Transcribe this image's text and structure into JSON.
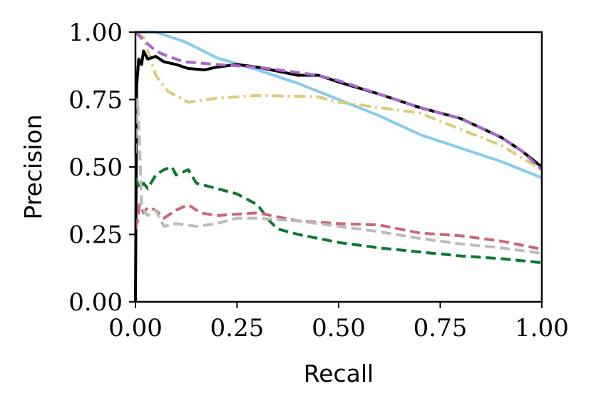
{
  "chart_data": {
    "type": "line",
    "title": "",
    "xlabel": "Recall",
    "ylabel": "Precision",
    "xlim": [
      0,
      1
    ],
    "ylim": [
      0,
      1
    ],
    "xticks": [
      "0.00",
      "0.25",
      "0.50",
      "0.75",
      "1.00"
    ],
    "yticks": [
      "0.00",
      "0.25",
      "0.50",
      "0.75",
      "1.00"
    ],
    "grid": false,
    "series": [
      {
        "color": "#88ccee",
        "dash": "solid",
        "points": [
          [
            0.0,
            1.0
          ],
          [
            0.05,
            1.0
          ],
          [
            0.12,
            0.965
          ],
          [
            0.2,
            0.905
          ],
          [
            0.3,
            0.86
          ],
          [
            0.4,
            0.81
          ],
          [
            0.5,
            0.75
          ],
          [
            0.6,
            0.69
          ],
          [
            0.7,
            0.62
          ],
          [
            0.8,
            0.57
          ],
          [
            0.9,
            0.52
          ],
          [
            1.0,
            0.46
          ]
        ]
      },
      {
        "color": "#ddcc77",
        "dash": "dashdot",
        "points": [
          [
            0.0,
            1.0
          ],
          [
            0.02,
            0.98
          ],
          [
            0.05,
            0.84
          ],
          [
            0.08,
            0.78
          ],
          [
            0.13,
            0.74
          ],
          [
            0.2,
            0.755
          ],
          [
            0.3,
            0.765
          ],
          [
            0.45,
            0.76
          ],
          [
            0.5,
            0.74
          ],
          [
            0.6,
            0.72
          ],
          [
            0.7,
            0.7
          ],
          [
            0.8,
            0.64
          ],
          [
            0.9,
            0.58
          ],
          [
            1.0,
            0.49
          ]
        ]
      },
      {
        "color": "#000000",
        "dash": "solid",
        "points": [
          [
            0.0,
            0.0
          ],
          [
            0.003,
            0.8
          ],
          [
            0.008,
            0.9
          ],
          [
            0.015,
            0.88
          ],
          [
            0.02,
            0.93
          ],
          [
            0.03,
            0.9
          ],
          [
            0.05,
            0.91
          ],
          [
            0.07,
            0.89
          ],
          [
            0.1,
            0.88
          ],
          [
            0.13,
            0.865
          ],
          [
            0.17,
            0.86
          ],
          [
            0.2,
            0.87
          ],
          [
            0.25,
            0.88
          ],
          [
            0.3,
            0.87
          ],
          [
            0.35,
            0.855
          ],
          [
            0.4,
            0.84
          ],
          [
            0.45,
            0.84
          ],
          [
            0.5,
            0.815
          ],
          [
            0.6,
            0.77
          ],
          [
            0.7,
            0.72
          ],
          [
            0.8,
            0.68
          ],
          [
            0.9,
            0.61
          ],
          [
            0.95,
            0.56
          ],
          [
            1.0,
            0.5
          ]
        ]
      },
      {
        "color": "#aa66cc",
        "dash": "dashed",
        "points": [
          [
            0.0,
            1.0
          ],
          [
            0.02,
            0.97
          ],
          [
            0.05,
            0.93
          ],
          [
            0.08,
            0.91
          ],
          [
            0.12,
            0.89
          ],
          [
            0.2,
            0.88
          ],
          [
            0.3,
            0.87
          ],
          [
            0.4,
            0.85
          ],
          [
            0.45,
            0.84
          ],
          [
            0.5,
            0.82
          ],
          [
            0.6,
            0.77
          ],
          [
            0.7,
            0.72
          ],
          [
            0.8,
            0.68
          ],
          [
            0.9,
            0.61
          ],
          [
            0.95,
            0.56
          ],
          [
            1.0,
            0.49
          ]
        ]
      },
      {
        "color": "#117733",
        "dash": "dashed",
        "points": [
          [
            0.0,
            0.46
          ],
          [
            0.01,
            0.42
          ],
          [
            0.02,
            0.44
          ],
          [
            0.03,
            0.42
          ],
          [
            0.05,
            0.47
          ],
          [
            0.07,
            0.49
          ],
          [
            0.09,
            0.5
          ],
          [
            0.1,
            0.47
          ],
          [
            0.13,
            0.49
          ],
          [
            0.15,
            0.44
          ],
          [
            0.2,
            0.42
          ],
          [
            0.25,
            0.4
          ],
          [
            0.3,
            0.36
          ],
          [
            0.33,
            0.3
          ],
          [
            0.35,
            0.27
          ],
          [
            0.4,
            0.25
          ],
          [
            0.5,
            0.22
          ],
          [
            0.6,
            0.2
          ],
          [
            0.7,
            0.185
          ],
          [
            0.8,
            0.17
          ],
          [
            0.9,
            0.16
          ],
          [
            1.0,
            0.145
          ]
        ]
      },
      {
        "color": "#cc6677",
        "dash": "dashed",
        "points": [
          [
            0.0,
            0.27
          ],
          [
            0.005,
            0.3
          ],
          [
            0.01,
            0.36
          ],
          [
            0.02,
            0.33
          ],
          [
            0.03,
            0.35
          ],
          [
            0.05,
            0.34
          ],
          [
            0.07,
            0.31
          ],
          [
            0.1,
            0.34
          ],
          [
            0.13,
            0.36
          ],
          [
            0.16,
            0.33
          ],
          [
            0.2,
            0.32
          ],
          [
            0.3,
            0.33
          ],
          [
            0.4,
            0.3
          ],
          [
            0.5,
            0.29
          ],
          [
            0.6,
            0.285
          ],
          [
            0.7,
            0.255
          ],
          [
            0.8,
            0.245
          ],
          [
            0.9,
            0.225
          ],
          [
            1.0,
            0.195
          ]
        ]
      },
      {
        "color": "#bbbbbb",
        "dash": "dashed",
        "points": [
          [
            0.0,
            0.55
          ],
          [
            0.005,
            0.75
          ],
          [
            0.01,
            0.6
          ],
          [
            0.015,
            0.35
          ],
          [
            0.03,
            0.32
          ],
          [
            0.05,
            0.34
          ],
          [
            0.07,
            0.28
          ],
          [
            0.1,
            0.29
          ],
          [
            0.15,
            0.28
          ],
          [
            0.2,
            0.29
          ],
          [
            0.25,
            0.31
          ],
          [
            0.3,
            0.31
          ],
          [
            0.4,
            0.3
          ],
          [
            0.5,
            0.28
          ],
          [
            0.6,
            0.26
          ],
          [
            0.7,
            0.235
          ],
          [
            0.8,
            0.215
          ],
          [
            0.9,
            0.2
          ],
          [
            1.0,
            0.18
          ]
        ]
      }
    ]
  }
}
